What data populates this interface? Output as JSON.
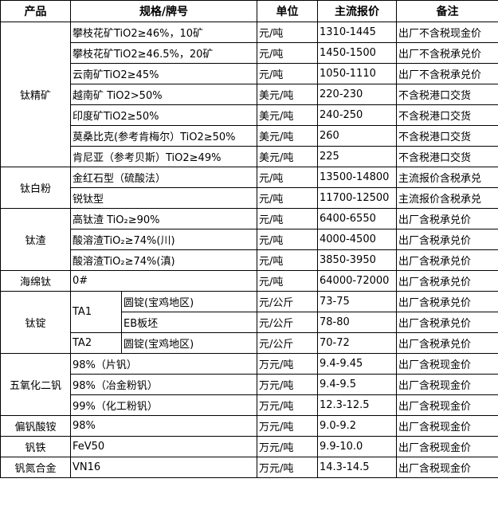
{
  "headers": {
    "product": "产品",
    "spec": "规格/牌号",
    "unit": "单位",
    "price": "主流报价",
    "note": "备注"
  },
  "groups": [
    {
      "product": "钛精矿",
      "rows": [
        {
          "spec": "攀枝花矿TiO2≥46%，10矿",
          "unit": "元/吨",
          "price": "1310-1445",
          "note": "出厂不含税现金价"
        },
        {
          "spec": "攀枝花矿TiO2≥46.5%，20矿",
          "unit": "元/吨",
          "price": "1450-1500",
          "note": "出厂不含税承兑价"
        },
        {
          "spec": "云南矿TiO2≥45%",
          "unit": "元/吨",
          "price": "1050-1110",
          "note": "出厂不含税承兑价"
        },
        {
          "spec": "越南矿 TiO2>50%",
          "unit": "美元/吨",
          "price": "220-230",
          "note": "不含税港口交货"
        },
        {
          "spec": "印度矿TiO2≥50%",
          "unit": "美元/吨",
          "price": "240-250",
          "note": "不含税港口交货"
        },
        {
          "spec": "莫桑比克(参考肯梅尔）TiO2≥50%",
          "unit": "美元/吨",
          "price": "260",
          "note": "不含税港口交货"
        },
        {
          "spec": "肯尼亚（参考贝斯）TiO2≥49%",
          "unit": "美元/吨",
          "price": "225",
          "note": "不含税港口交货"
        }
      ]
    },
    {
      "product": "钛白粉",
      "rows": [
        {
          "spec": "金红石型（硫酸法）",
          "unit": "元/吨",
          "price": "13500-14800",
          "note": "主流报价含税承兑"
        },
        {
          "spec": "锐钛型",
          "unit": "元/吨",
          "price": "11700-12500",
          "note": "主流报价含税承兑"
        }
      ]
    },
    {
      "product": "钛渣",
      "rows": [
        {
          "spec": "高钛渣 TiO₂≥90%",
          "unit": "元/吨",
          "price": "6400-6550",
          "note": "出厂含税承兑价"
        },
        {
          "spec": "酸溶渣TiO₂≥74%(川)",
          "unit": "元/吨",
          "price": "4000-4500",
          "note": "出厂含税承兑价"
        },
        {
          "spec": "酸溶渣TiO₂≥74%(滇)",
          "unit": "元/吨",
          "price": "3850-3950",
          "note": "出厂含税承兑价"
        }
      ]
    },
    {
      "product": "海绵钛",
      "rows": [
        {
          "spec": "0#",
          "unit": "元/吨",
          "price": "64000-72000",
          "note": "出厂含税承兑价"
        }
      ]
    },
    {
      "product": "钛锭",
      "rows": [
        {
          "grade": "TA1",
          "spec": "圆锭(宝鸡地区)",
          "unit": "元/公斤",
          "price": "73-75",
          "note": "出厂含税承兑价"
        },
        {
          "grade": "TA1",
          "spec": "EB板坯",
          "unit": "元/公斤",
          "price": "78-80",
          "note": "出厂含税承兑价"
        },
        {
          "grade": "TA2",
          "spec": "圆锭(宝鸡地区)",
          "unit": "元/公斤",
          "price": "70-72",
          "note": "出厂含税承兑价"
        }
      ]
    },
    {
      "product": "五氧化二钒",
      "rows": [
        {
          "spec": "98%（片钒）",
          "unit": "万元/吨",
          "price": "9.4-9.45",
          "note": "出厂含税现金价"
        },
        {
          "spec": "98%（冶金粉钒）",
          "unit": "万元/吨",
          "price": "9.4-9.5",
          "note": "出厂含税现金价"
        },
        {
          "spec": "99%（化工粉钒）",
          "unit": "万元/吨",
          "price": "12.3-12.5",
          "note": "出厂含税现金价"
        }
      ]
    },
    {
      "product": "偏钒酸铵",
      "rows": [
        {
          "spec": "98%",
          "unit": "万元/吨",
          "price": "9.0-9.2",
          "note": "出厂含税现金价"
        }
      ]
    },
    {
      "product": "钒铁",
      "rows": [
        {
          "spec": "FeV50",
          "unit": "万元/吨",
          "price": "9.9-10.0",
          "note": "出厂含税现金价"
        }
      ]
    },
    {
      "product": "钒氮合金",
      "rows": [
        {
          "spec": "VN16",
          "unit": "万元/吨",
          "price": "14.3-14.5",
          "note": "出厂含税现金价"
        }
      ]
    }
  ]
}
